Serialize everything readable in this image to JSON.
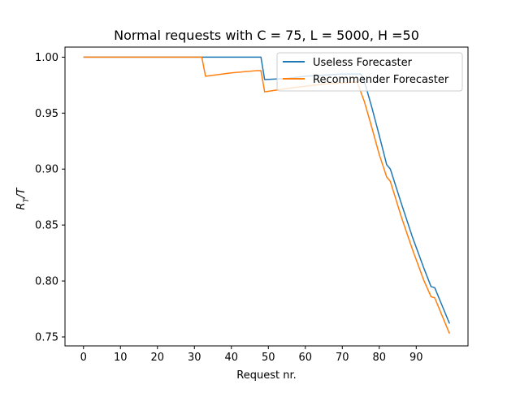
{
  "chart_data": {
    "type": "line",
    "title": "Normal requests with C = 75, L = 5000, H =50",
    "xlabel": "Request nr.",
    "ylabel": "R_T/T",
    "xlim": [
      -5,
      104
    ],
    "ylim": [
      0.742,
      1.009
    ],
    "xticks": [
      0,
      10,
      20,
      30,
      40,
      50,
      60,
      70,
      80,
      90
    ],
    "yticks": [
      0.75,
      0.8,
      0.85,
      0.9,
      0.95,
      1.0
    ],
    "grid": false,
    "legend_position": "top-right",
    "colors": {
      "useless": "#1f77b4",
      "recommender": "#ff7f0e"
    },
    "series": [
      {
        "name": "Useless Forecaster",
        "points": [
          [
            0,
            1.0
          ],
          [
            48,
            1.0
          ],
          [
            49,
            0.98
          ],
          [
            55,
            0.981
          ],
          [
            60,
            0.983
          ],
          [
            65,
            0.984
          ],
          [
            70,
            0.985
          ],
          [
            75,
            0.985
          ],
          [
            76,
            0.978
          ],
          [
            78,
            0.955
          ],
          [
            80,
            0.93
          ],
          [
            82,
            0.904
          ],
          [
            83,
            0.9
          ],
          [
            86,
            0.869
          ],
          [
            89,
            0.839
          ],
          [
            92,
            0.812
          ],
          [
            94,
            0.795
          ],
          [
            95,
            0.794
          ],
          [
            97,
            0.778
          ],
          [
            99,
            0.762
          ]
        ]
      },
      {
        "name": "Recommender Forecaster",
        "points": [
          [
            0,
            1.0
          ],
          [
            32,
            1.0
          ],
          [
            33,
            0.983
          ],
          [
            40,
            0.986
          ],
          [
            47,
            0.988
          ],
          [
            48,
            0.988
          ],
          [
            49,
            0.969
          ],
          [
            55,
            0.972
          ],
          [
            60,
            0.974
          ],
          [
            65,
            0.976
          ],
          [
            70,
            0.977
          ],
          [
            74,
            0.978
          ],
          [
            76,
            0.96
          ],
          [
            78,
            0.937
          ],
          [
            80,
            0.913
          ],
          [
            82,
            0.893
          ],
          [
            83,
            0.889
          ],
          [
            86,
            0.857
          ],
          [
            89,
            0.828
          ],
          [
            92,
            0.801
          ],
          [
            94,
            0.786
          ],
          [
            95,
            0.785
          ],
          [
            97,
            0.769
          ],
          [
            99,
            0.753
          ]
        ]
      }
    ]
  }
}
